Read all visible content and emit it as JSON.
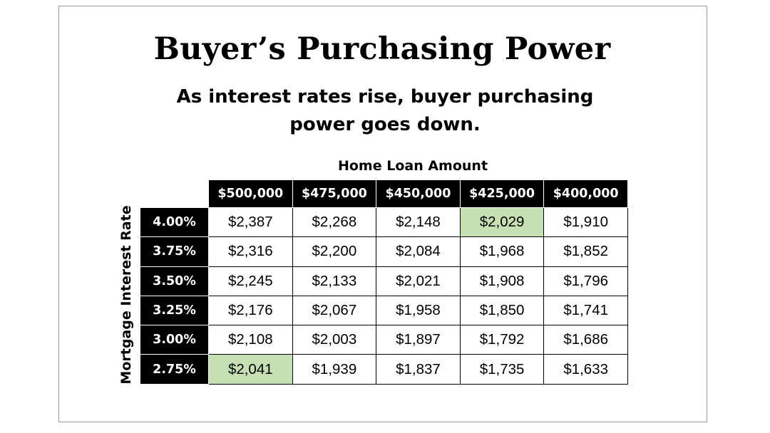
{
  "title": "Buyer’s Purchasing Power",
  "subtitle_line1": "As interest rates rise, buyer purchasing",
  "subtitle_line2": "power goes down.",
  "col_axis_label": "Home Loan Amount",
  "row_axis_label": "Mortgage Interest Rate",
  "highlight_color": "#c6e0b4",
  "columns": [
    "$500,000",
    "$475,000",
    "$450,000",
    "$425,000",
    "$400,000"
  ],
  "rows": [
    {
      "rate": "4.00%",
      "values": [
        "$2,387",
        "$2,268",
        "$2,148",
        "$2,029",
        "$1,910"
      ],
      "highlight": 3
    },
    {
      "rate": "3.75%",
      "values": [
        "$2,316",
        "$2,200",
        "$2,084",
        "$1,968",
        "$1,852"
      ],
      "highlight": -1
    },
    {
      "rate": "3.50%",
      "values": [
        "$2,245",
        "$2,133",
        "$2,021",
        "$1,908",
        "$1,796"
      ],
      "highlight": -1
    },
    {
      "rate": "3.25%",
      "values": [
        "$2,176",
        "$2,067",
        "$1,958",
        "$1,850",
        "$1,741"
      ],
      "highlight": -1
    },
    {
      "rate": "3.00%",
      "values": [
        "$2,108",
        "$2,003",
        "$1,897",
        "$1,792",
        "$1,686"
      ],
      "highlight": -1
    },
    {
      "rate": "2.75%",
      "values": [
        "$2,041",
        "$1,939",
        "$1,837",
        "$1,735",
        "$1,633"
      ],
      "highlight": 0
    }
  ]
}
